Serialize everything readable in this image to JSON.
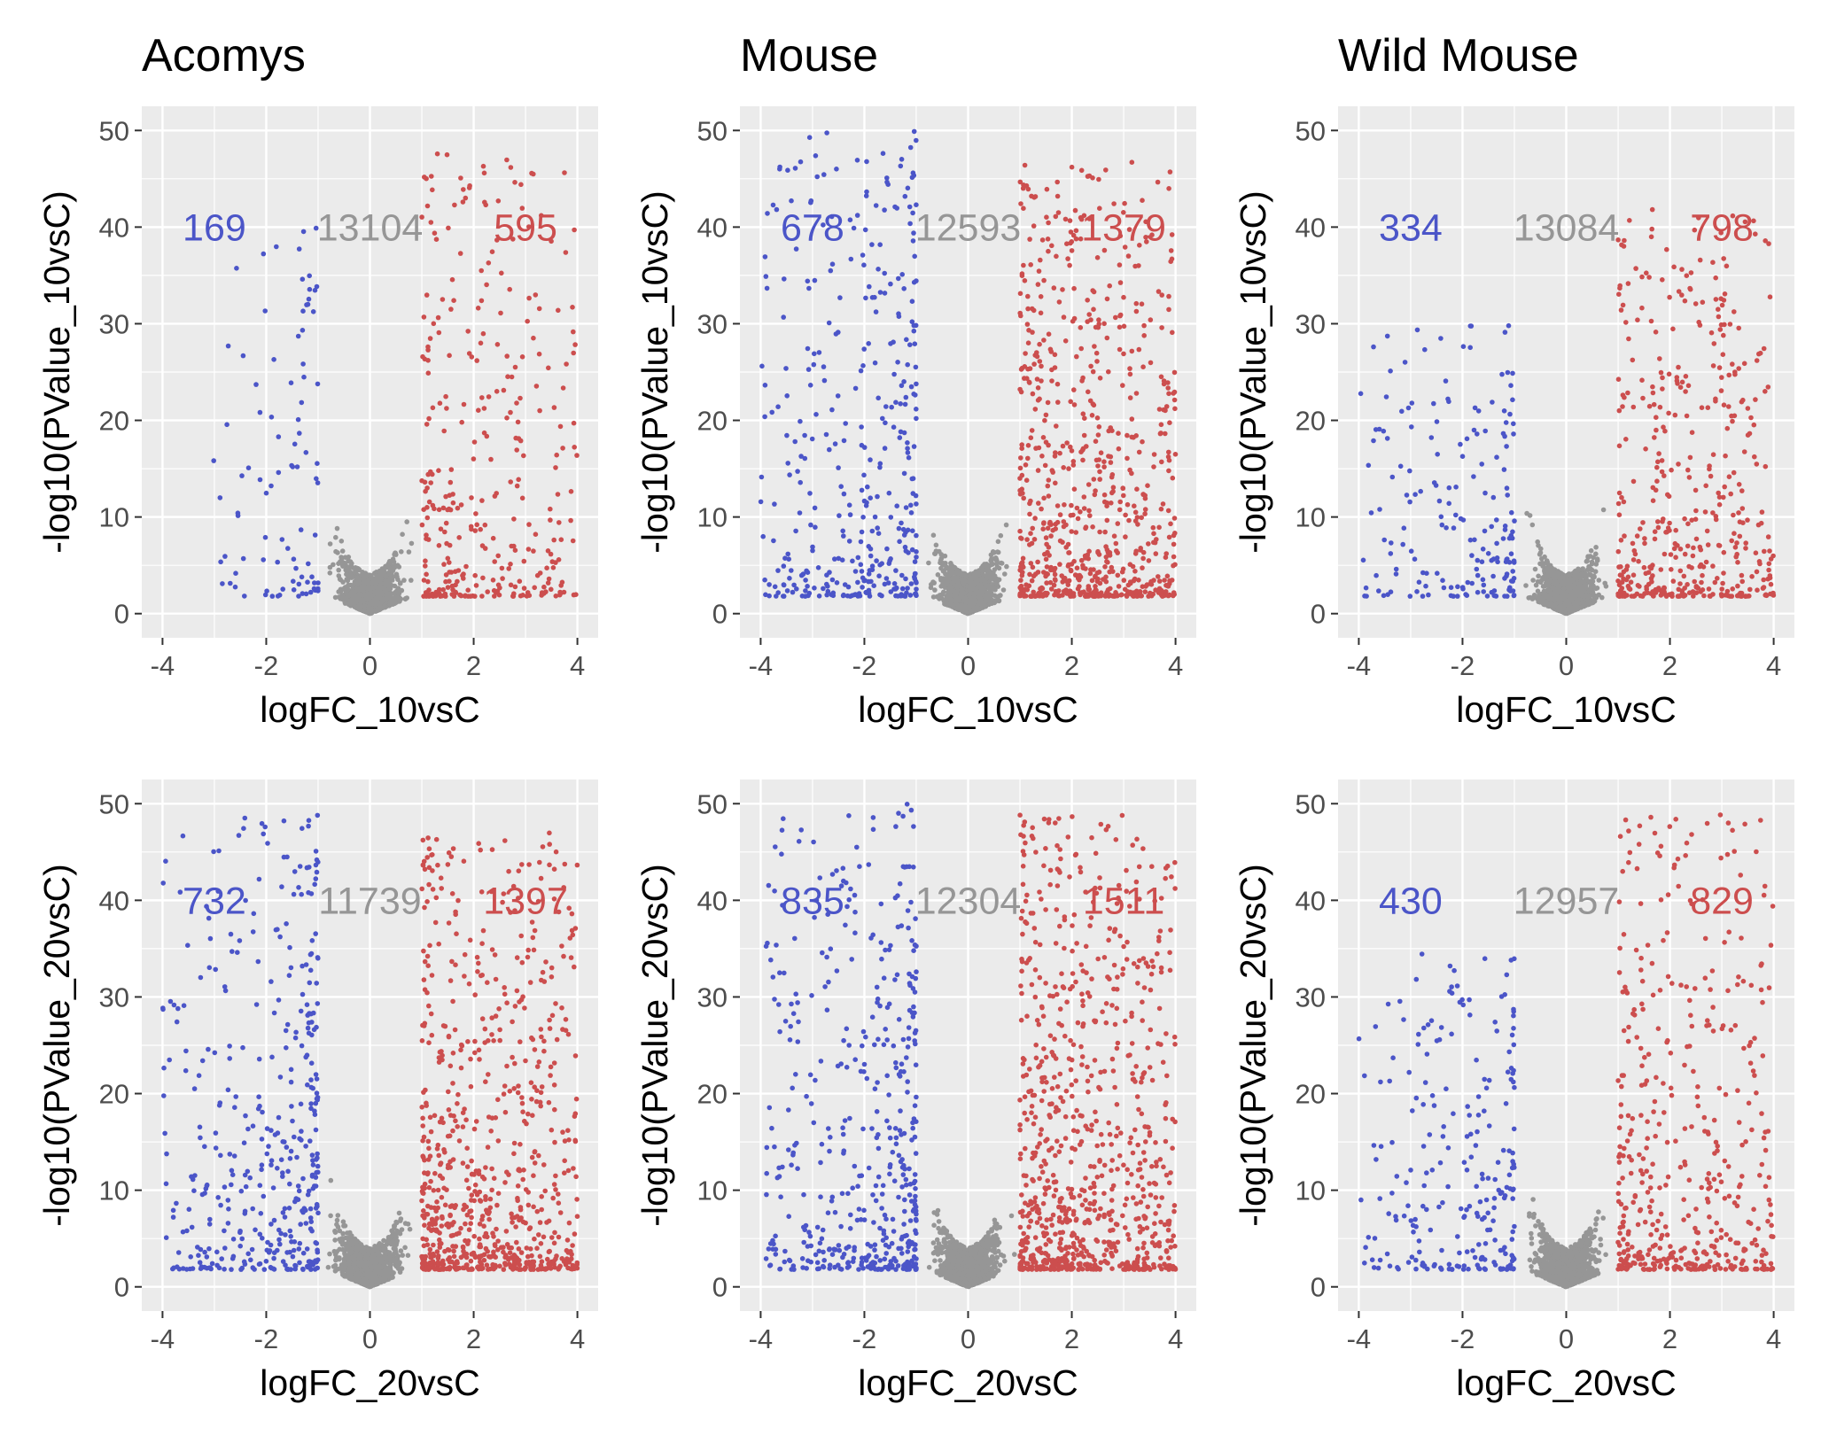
{
  "chart_data": [
    {
      "type": "scatter",
      "title": "Acomys",
      "xlabel": "logFC_10vsC",
      "ylabel": "-log10(PValue_10vsC)",
      "xlim": [
        -4.4,
        4.4
      ],
      "ylim": [
        -2.5,
        52.5
      ],
      "x_ticks": [
        "-4",
        "-2",
        "0",
        "2",
        "4"
      ],
      "y_ticks": [
        "0",
        "10",
        "20",
        "30",
        "40",
        "50"
      ],
      "grid": true,
      "legend": "none",
      "counts": {
        "down": "169",
        "ns": "13104",
        "up": "595"
      },
      "extent": {
        "down_xmin": -3.1,
        "down_ymax": 40,
        "up_xmax": 4.0,
        "up_ymax": 48
      }
    },
    {
      "type": "scatter",
      "title": "Mouse",
      "xlabel": "logFC_10vsC",
      "ylabel": "-log10(PValue_10vsC)",
      "xlim": [
        -4.4,
        4.4
      ],
      "ylim": [
        -2.5,
        52.5
      ],
      "x_ticks": [
        "-4",
        "-2",
        "0",
        "2",
        "4"
      ],
      "y_ticks": [
        "0",
        "10",
        "20",
        "30",
        "40",
        "50"
      ],
      "grid": true,
      "legend": "none",
      "counts": {
        "down": "678",
        "ns": "12593",
        "up": "1379"
      },
      "extent": {
        "down_xmin": -4.0,
        "down_ymax": 50,
        "up_xmax": 4.0,
        "up_ymax": 47
      }
    },
    {
      "type": "scatter",
      "title": "Wild Mouse",
      "xlabel": "logFC_10vsC",
      "ylabel": "-log10(PValue_10vsC)",
      "xlim": [
        -4.4,
        4.4
      ],
      "ylim": [
        -2.5,
        52.5
      ],
      "x_ticks": [
        "-4",
        "-2",
        "0",
        "2",
        "4"
      ],
      "y_ticks": [
        "0",
        "10",
        "20",
        "30",
        "40",
        "50"
      ],
      "grid": true,
      "legend": "none",
      "counts": {
        "down": "334",
        "ns": "13084",
        "up": "798"
      },
      "extent": {
        "down_xmin": -4.0,
        "down_ymax": 30,
        "up_xmax": 4.0,
        "up_ymax": 42
      }
    },
    {
      "type": "scatter",
      "title": "",
      "xlabel": "logFC_20vsC",
      "ylabel": "-log10(PValue_20vsC)",
      "xlim": [
        -4.4,
        4.4
      ],
      "ylim": [
        -2.5,
        52.5
      ],
      "x_ticks": [
        "-4",
        "-2",
        "0",
        "2",
        "4"
      ],
      "y_ticks": [
        "0",
        "10",
        "20",
        "30",
        "40",
        "50"
      ],
      "grid": true,
      "legend": "none",
      "counts": {
        "down": "732",
        "ns": "11739",
        "up": "1397"
      },
      "extent": {
        "down_xmin": -4.0,
        "down_ymax": 49,
        "up_xmax": 4.0,
        "up_ymax": 47
      }
    },
    {
      "type": "scatter",
      "title": "",
      "xlabel": "logFC_20vsC",
      "ylabel": "-log10(PValue_20vsC)",
      "xlim": [
        -4.4,
        4.4
      ],
      "ylim": [
        -2.5,
        52.5
      ],
      "x_ticks": [
        "-4",
        "-2",
        "0",
        "2",
        "4"
      ],
      "y_ticks": [
        "0",
        "10",
        "20",
        "30",
        "40",
        "50"
      ],
      "grid": true,
      "legend": "none",
      "counts": {
        "down": "835",
        "ns": "12304",
        "up": "1511"
      },
      "extent": {
        "down_xmin": -3.9,
        "down_ymax": 50,
        "up_xmax": 4.0,
        "up_ymax": 49
      }
    },
    {
      "type": "scatter",
      "title": "",
      "xlabel": "logFC_20vsC",
      "ylabel": "-log10(PValue_20vsC)",
      "xlim": [
        -4.4,
        4.4
      ],
      "ylim": [
        -2.5,
        52.5
      ],
      "x_ticks": [
        "-4",
        "-2",
        "0",
        "2",
        "4"
      ],
      "y_ticks": [
        "0",
        "10",
        "20",
        "30",
        "40",
        "50"
      ],
      "grid": true,
      "legend": "none",
      "counts": {
        "down": "430",
        "ns": "12957",
        "up": "829"
      },
      "extent": {
        "down_xmin": -4.0,
        "down_ymax": 35,
        "up_xmax": 4.0,
        "up_ymax": 49
      }
    }
  ],
  "colors": {
    "down": "#4b55c8",
    "ns": "#969696",
    "up": "#cc4e4e",
    "panel_bg": "#ebebeb",
    "grid": "#ffffff",
    "tick_text": "#4d4d4d"
  }
}
